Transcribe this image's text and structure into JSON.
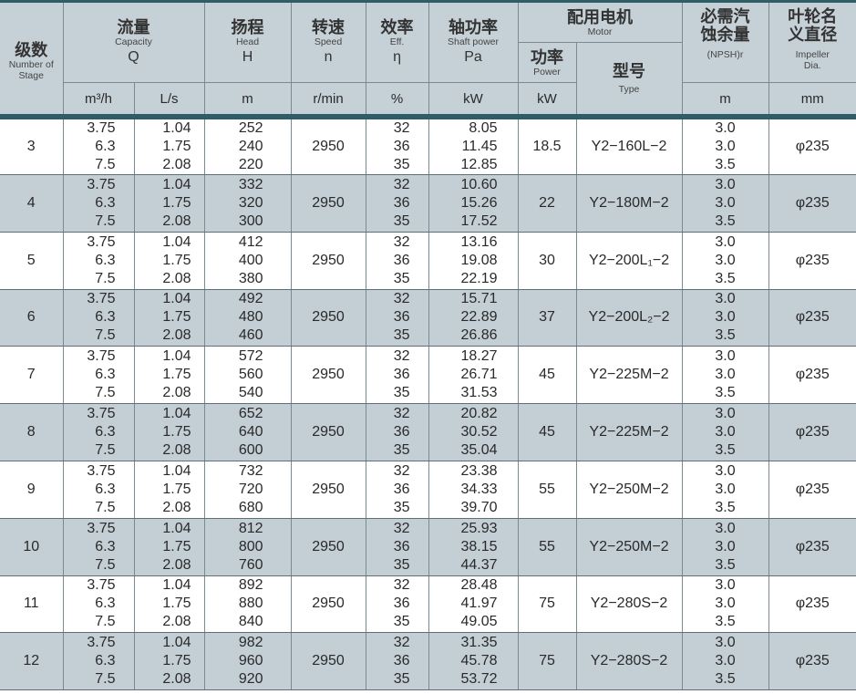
{
  "header": {
    "stage": {
      "zh": "级数",
      "en": "Number of Stage"
    },
    "capacity": {
      "zh": "流量",
      "en": "Capacity",
      "sym": "Q",
      "unit1": "m³/h",
      "unit2": "L/s"
    },
    "head": {
      "zh": "扬程",
      "en": "Head",
      "sym": "H",
      "unit": "m"
    },
    "speed": {
      "zh": "转速",
      "en": "Speed",
      "sym": "n",
      "unit": "r/min"
    },
    "eff": {
      "zh": "效率",
      "en": "Eff.",
      "sym": "η",
      "unit": "%"
    },
    "shaft": {
      "zh": "轴功率",
      "en": "Shaft power",
      "sym": "Pa",
      "unit": "kW"
    },
    "motor": {
      "zh": "配用电机",
      "en": "Motor",
      "power": {
        "zh": "功率",
        "en": "Power",
        "unit": "kW"
      },
      "type": {
        "zh": "型号",
        "en": "Type"
      }
    },
    "npsh": {
      "zh": "必需汽蚀余量",
      "en": "(NPSH)r",
      "unit": "m"
    },
    "impeller": {
      "zh": "叶轮名义直径",
      "en": "Impeller Dia.",
      "unit": "mm"
    }
  },
  "rows": [
    {
      "stage": "3",
      "q1": [
        "3.75",
        "6.3",
        "7.5"
      ],
      "q2": [
        "1.04",
        "1.75",
        "2.08"
      ],
      "h": [
        "252",
        "240",
        "220"
      ],
      "n": "2950",
      "eff": [
        "32",
        "36",
        "35"
      ],
      "pa": [
        "8.05",
        "11.45",
        "12.85"
      ],
      "power": "18.5",
      "type": "Y2−160L−2",
      "npsh": [
        "3.0",
        "3.0",
        "3.5"
      ],
      "dia": "φ235"
    },
    {
      "stage": "4",
      "q1": [
        "3.75",
        "6.3",
        "7.5"
      ],
      "q2": [
        "1.04",
        "1.75",
        "2.08"
      ],
      "h": [
        "332",
        "320",
        "300"
      ],
      "n": "2950",
      "eff": [
        "32",
        "36",
        "35"
      ],
      "pa": [
        "10.60",
        "15.26",
        "17.52"
      ],
      "power": "22",
      "type": "Y2−180M−2",
      "npsh": [
        "3.0",
        "3.0",
        "3.5"
      ],
      "dia": "φ235"
    },
    {
      "stage": "5",
      "q1": [
        "3.75",
        "6.3",
        "7.5"
      ],
      "q2": [
        "1.04",
        "1.75",
        "2.08"
      ],
      "h": [
        "412",
        "400",
        "380"
      ],
      "n": "2950",
      "eff": [
        "32",
        "36",
        "35"
      ],
      "pa": [
        "13.16",
        "19.08",
        "22.19"
      ],
      "power": "30",
      "type": "Y2−200L₁−2",
      "npsh": [
        "3.0",
        "3.0",
        "3.5"
      ],
      "dia": "φ235"
    },
    {
      "stage": "6",
      "q1": [
        "3.75",
        "6.3",
        "7.5"
      ],
      "q2": [
        "1.04",
        "1.75",
        "2.08"
      ],
      "h": [
        "492",
        "480",
        "460"
      ],
      "n": "2950",
      "eff": [
        "32",
        "36",
        "35"
      ],
      "pa": [
        "15.71",
        "22.89",
        "26.86"
      ],
      "power": "37",
      "type": "Y2−200L₂−2",
      "npsh": [
        "3.0",
        "3.0",
        "3.5"
      ],
      "dia": "φ235"
    },
    {
      "stage": "7",
      "q1": [
        "3.75",
        "6.3",
        "7.5"
      ],
      "q2": [
        "1.04",
        "1.75",
        "2.08"
      ],
      "h": [
        "572",
        "560",
        "540"
      ],
      "n": "2950",
      "eff": [
        "32",
        "36",
        "35"
      ],
      "pa": [
        "18.27",
        "26.71",
        "31.53"
      ],
      "power": "45",
      "type": "Y2−225M−2",
      "npsh": [
        "3.0",
        "3.0",
        "3.5"
      ],
      "dia": "φ235"
    },
    {
      "stage": "8",
      "q1": [
        "3.75",
        "6.3",
        "7.5"
      ],
      "q2": [
        "1.04",
        "1.75",
        "2.08"
      ],
      "h": [
        "652",
        "640",
        "600"
      ],
      "n": "2950",
      "eff": [
        "32",
        "36",
        "35"
      ],
      "pa": [
        "20.82",
        "30.52",
        "35.04"
      ],
      "power": "45",
      "type": "Y2−225M−2",
      "npsh": [
        "3.0",
        "3.0",
        "3.5"
      ],
      "dia": "φ235"
    },
    {
      "stage": "9",
      "q1": [
        "3.75",
        "6.3",
        "7.5"
      ],
      "q2": [
        "1.04",
        "1.75",
        "2.08"
      ],
      "h": [
        "732",
        "720",
        "680"
      ],
      "n": "2950",
      "eff": [
        "32",
        "36",
        "35"
      ],
      "pa": [
        "23.38",
        "34.33",
        "39.70"
      ],
      "power": "55",
      "type": "Y2−250M−2",
      "npsh": [
        "3.0",
        "3.0",
        "3.5"
      ],
      "dia": "φ235"
    },
    {
      "stage": "10",
      "q1": [
        "3.75",
        "6.3",
        "7.5"
      ],
      "q2": [
        "1.04",
        "1.75",
        "2.08"
      ],
      "h": [
        "812",
        "800",
        "760"
      ],
      "n": "2950",
      "eff": [
        "32",
        "36",
        "35"
      ],
      "pa": [
        "25.93",
        "38.15",
        "44.37"
      ],
      "power": "55",
      "type": "Y2−250M−2",
      "npsh": [
        "3.0",
        "3.0",
        "3.5"
      ],
      "dia": "φ235"
    },
    {
      "stage": "11",
      "q1": [
        "3.75",
        "6.3",
        "7.5"
      ],
      "q2": [
        "1.04",
        "1.75",
        "2.08"
      ],
      "h": [
        "892",
        "880",
        "840"
      ],
      "n": "2950",
      "eff": [
        "32",
        "36",
        "35"
      ],
      "pa": [
        "28.48",
        "41.97",
        "49.05"
      ],
      "power": "75",
      "type": "Y2−280S−2",
      "npsh": [
        "3.0",
        "3.0",
        "3.5"
      ],
      "dia": "φ235"
    },
    {
      "stage": "12",
      "q1": [
        "3.75",
        "6.3",
        "7.5"
      ],
      "q2": [
        "1.04",
        "1.75",
        "2.08"
      ],
      "h": [
        "982",
        "960",
        "920"
      ],
      "n": "2950",
      "eff": [
        "32",
        "36",
        "35"
      ],
      "pa": [
        "31.35",
        "45.78",
        "53.72"
      ],
      "power": "75",
      "type": "Y2−280S−2",
      "npsh": [
        "3.0",
        "3.0",
        "3.5"
      ],
      "dia": "φ235"
    }
  ]
}
